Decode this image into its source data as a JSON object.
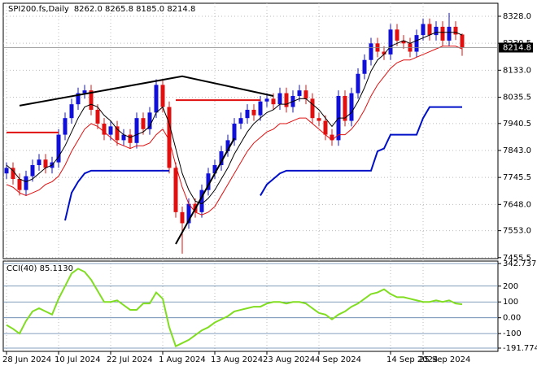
{
  "chart_data": [
    {
      "type": "candlestick",
      "title": "SPI200.fs,Daily",
      "ohlc_label": "8262.0 8265.8 8185.0 8214.8",
      "categories": [
        "28 Jun 2024",
        null,
        null,
        null,
        null,
        null,
        null,
        null,
        "10 Jul 2024",
        null,
        null,
        null,
        null,
        null,
        null,
        null,
        "22 Jul 2024",
        null,
        null,
        null,
        null,
        null,
        null,
        null,
        "1 Aug 2024",
        null,
        null,
        null,
        null,
        null,
        null,
        null,
        "13 Aug 2024",
        null,
        null,
        null,
        null,
        null,
        null,
        null,
        "23 Aug 2024",
        null,
        null,
        null,
        null,
        null,
        null,
        null,
        "4 Sep 2024",
        null,
        null,
        null,
        null,
        null,
        null,
        null,
        null,
        null,
        null,
        "14 Sep 2024",
        null,
        null,
        null,
        null,
        "25 Sep 2024",
        null,
        null,
        null,
        null,
        null,
        null
      ],
      "open": [
        7760,
        7780,
        7740,
        7700,
        7750,
        7790,
        7810,
        7780,
        7800,
        7900,
        7960,
        8010,
        8050,
        8060,
        7990,
        7940,
        7900,
        7930,
        7880,
        7900,
        7870,
        7960,
        7920,
        7980,
        8080,
        8000,
        7780,
        7620,
        7580,
        7650,
        7620,
        7700,
        7760,
        7790,
        7840,
        7880,
        7940,
        7960,
        7990,
        7970,
        8020,
        8030,
        8010,
        8050,
        8000,
        8040,
        8060,
        8030,
        7960,
        7950,
        7900,
        7880,
        8040,
        7950,
        8050,
        8120,
        8170,
        8230,
        8200,
        8190,
        8280,
        8240,
        8230,
        8200,
        8260,
        8300,
        8260,
        8290,
        8240,
        8290,
        8262
      ],
      "high": [
        7800,
        7800,
        7760,
        7770,
        7810,
        7830,
        7830,
        7820,
        7920,
        7980,
        8030,
        8070,
        8080,
        8080,
        8010,
        7960,
        7950,
        7950,
        7920,
        7920,
        7980,
        7980,
        8000,
        8100,
        8100,
        8020,
        7800,
        7640,
        7670,
        7670,
        7720,
        7780,
        7810,
        7860,
        7900,
        7960,
        7980,
        8010,
        8010,
        8040,
        8050,
        8050,
        8070,
        8070,
        8060,
        8080,
        8080,
        8050,
        7980,
        7970,
        7920,
        8060,
        8060,
        8070,
        8140,
        8190,
        8250,
        8250,
        8220,
        8300,
        8300,
        8260,
        8250,
        8280,
        8320,
        8320,
        8310,
        8310,
        8340,
        8310,
        8265.8
      ],
      "low": [
        7740,
        7720,
        7680,
        7680,
        7730,
        7770,
        7760,
        7760,
        7780,
        7880,
        7940,
        7990,
        8030,
        7970,
        7920,
        7880,
        7880,
        7860,
        7860,
        7850,
        7850,
        7900,
        7900,
        7960,
        7980,
        7760,
        7600,
        7470,
        7560,
        7600,
        7600,
        7680,
        7740,
        7770,
        7820,
        7860,
        7920,
        7940,
        7950,
        7950,
        8000,
        7990,
        7990,
        7980,
        7980,
        8020,
        8010,
        7940,
        7930,
        7880,
        7860,
        7860,
        7930,
        7930,
        8030,
        8100,
        8150,
        8180,
        8170,
        8170,
        8220,
        8210,
        8180,
        8180,
        8240,
        8240,
        8240,
        8220,
        8220,
        8242,
        8185
      ],
      "close": [
        7780,
        7740,
        7700,
        7750,
        7790,
        7810,
        7780,
        7800,
        7900,
        7960,
        8010,
        8050,
        8060,
        7990,
        7940,
        7900,
        7930,
        7880,
        7900,
        7870,
        7960,
        7920,
        7980,
        8080,
        8000,
        7780,
        7620,
        7580,
        7650,
        7620,
        7700,
        7760,
        7790,
        7840,
        7880,
        7940,
        7960,
        7990,
        7970,
        8020,
        8030,
        8010,
        8050,
        8000,
        8040,
        8060,
        8030,
        7960,
        7950,
        7900,
        7880,
        8040,
        7950,
        8050,
        8120,
        8170,
        8230,
        8200,
        8190,
        8280,
        8240,
        8230,
        8200,
        8260,
        8300,
        8260,
        8290,
        8240,
        8290,
        8262,
        8214.8
      ],
      "up_color": "#1010d8",
      "down_color": "#e01010",
      "series": [
        {
          "color": "#000000",
          "values": [
            7790,
            7770,
            7740,
            7730,
            7740,
            7760,
            7780,
            7790,
            7820,
            7860,
            7910,
            7960,
            8000,
            8010,
            8000,
            7970,
            7950,
            7920,
            7900,
            7890,
            7900,
            7910,
            7930,
            7980,
            8000,
            7940,
            7850,
            7760,
            7700,
            7660,
            7650,
            7670,
            7700,
            7740,
            7780,
            7830,
            7870,
            7910,
            7940,
            7960,
            7980,
            7990,
            8010,
            8010,
            8020,
            8030,
            8030,
            8010,
            7990,
            7960,
            7930,
            7960,
            7960,
            7980,
            8020,
            8070,
            8130,
            8170,
            8190,
            8220,
            8230,
            8240,
            8230,
            8240,
            8250,
            8260,
            8270,
            8270,
            8270,
            8270,
            8260
          ]
        },
        {
          "color": "#e01010",
          "values": [
            7720,
            7710,
            7690,
            7680,
            7690,
            7700,
            7720,
            7730,
            7750,
            7790,
            7840,
            7880,
            7920,
            7940,
            7930,
            7910,
            7890,
            7870,
            7860,
            7850,
            7860,
            7860,
            7870,
            7900,
            7920,
            7880,
            7790,
            7710,
            7650,
            7620,
            7610,
            7620,
            7640,
            7680,
            7720,
            7760,
            7800,
            7840,
            7870,
            7890,
            7910,
            7920,
            7940,
            7940,
            7950,
            7960,
            7960,
            7940,
            7920,
            7900,
            7880,
            7900,
            7900,
            7920,
            7950,
            7990,
            8040,
            8080,
            8110,
            8140,
            8160,
            8170,
            8170,
            8180,
            8190,
            8200,
            8210,
            8220,
            8220,
            8220,
            8210
          ]
        },
        {
          "color": "#0010c8",
          "values": [
            null,
            null,
            null,
            null,
            null,
            null,
            null,
            null,
            null,
            7590,
            7690,
            7730,
            7760,
            7770,
            7770,
            7770,
            7770,
            7770,
            7770,
            7770,
            7770,
            7770,
            7770,
            7770,
            7770,
            7770,
            null,
            null,
            null,
            null,
            null,
            null,
            null,
            null,
            null,
            null,
            null,
            null,
            null,
            7680,
            7720,
            7740,
            7760,
            7770,
            7770,
            7770,
            7770,
            7770,
            7770,
            7770,
            7770,
            7770,
            7770,
            7770,
            7770,
            7770,
            7770,
            7840,
            7850,
            7900,
            7900,
            7900,
            7900,
            7900,
            7960,
            8000,
            8000,
            8000,
            8000,
            8000,
            8000
          ]
        }
      ],
      "trendlines": [
        {
          "color": "#000000",
          "x": [
            2,
            27,
            41
          ],
          "values": [
            8005,
            8111,
            8040
          ]
        },
        {
          "color": "#000000",
          "x": [
            26,
            35
          ],
          "values": [
            7505,
            7887
          ]
        },
        {
          "color": "#e01010",
          "x": [
            0,
            8
          ],
          "values": [
            7908,
            7908
          ]
        },
        {
          "color": "#e01010",
          "x": [
            26,
            39
          ],
          "values": [
            8025,
            8025
          ]
        }
      ],
      "last_price_label": "8214.8",
      "ylim": [
        7452,
        8375
      ],
      "yticks": [
        {
          "value": 8328,
          "label": "8328.0"
        },
        {
          "value": 8230.5,
          "label": "8230.5"
        },
        {
          "value": 8133,
          "label": "8133.0"
        },
        {
          "value": 8035.5,
          "label": "8035.5"
        },
        {
          "value": 7940.5,
          "label": "7940.5"
        },
        {
          "value": 7843,
          "label": "7843.0"
        },
        {
          "value": 7745.5,
          "label": "7745.5"
        },
        {
          "value": 7648,
          "label": "7648.0"
        },
        {
          "value": 7553,
          "label": "7553.0"
        },
        {
          "value": 7455.5,
          "label": "7455.5"
        }
      ],
      "grid": true
    },
    {
      "type": "line",
      "title": "CCI(40) 85.1130",
      "color": "#80dd20",
      "values": [
        -46,
        -70,
        -100,
        -20,
        40,
        60,
        40,
        20,
        120,
        200,
        280,
        310,
        290,
        240,
        170,
        100,
        100,
        110,
        80,
        50,
        50,
        90,
        90,
        160,
        120,
        -60,
        -180,
        -160,
        -140,
        -110,
        -80,
        -60,
        -30,
        -10,
        10,
        40,
        50,
        60,
        70,
        70,
        90,
        100,
        100,
        90,
        100,
        100,
        90,
        60,
        30,
        20,
        -10,
        20,
        40,
        70,
        90,
        120,
        150,
        160,
        180,
        150,
        130,
        130,
        120,
        110,
        100,
        100,
        110,
        100,
        110,
        90,
        85.113
      ],
      "ylim": [
        -191.7744,
        342.7377
      ],
      "yticks": [
        342.7377,
        200,
        100,
        {
          "value": 0,
          "label": "0.00"
        },
        -100,
        -191.7744
      ],
      "level_color": "#5a7fa8"
    }
  ]
}
